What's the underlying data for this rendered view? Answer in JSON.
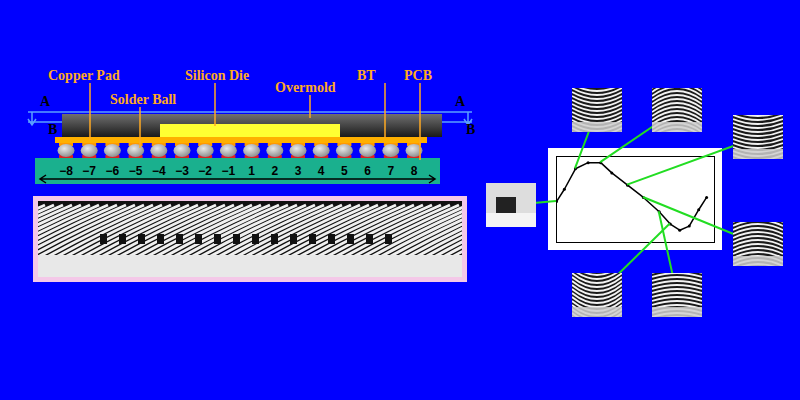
{
  "diagram": {
    "labels": {
      "copper_pad": "Copper Pad",
      "solder_ball": "Solder Ball",
      "silicon_die": "Silicon Die",
      "overmold": "Overmold",
      "bt": "BT",
      "pcb": "PCB"
    },
    "section_lines": [
      "A",
      "B"
    ],
    "ball_numbers": [
      -8,
      -7,
      -6,
      -5,
      -4,
      -3,
      -2,
      -1,
      1,
      2,
      3,
      4,
      5,
      6,
      7,
      8
    ]
  },
  "chart_data": {
    "type": "line",
    "x": [
      0,
      5,
      12,
      20,
      28,
      35,
      45,
      55,
      65,
      72,
      78,
      84,
      90,
      95
    ],
    "values": [
      0,
      0.3,
      0.8,
      0.95,
      0.95,
      0.7,
      0.4,
      0.1,
      -0.25,
      -0.55,
      -0.7,
      -0.6,
      -0.2,
      0.1
    ],
    "xlim": [
      0,
      100
    ],
    "ylim": [
      -1,
      1.1
    ],
    "tick_labels": false,
    "color": "#000000",
    "marker": "dot"
  }
}
